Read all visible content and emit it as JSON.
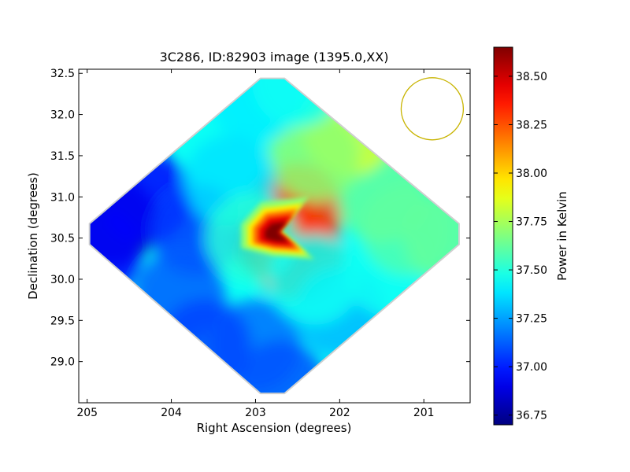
{
  "chart_data": {
    "type": "heatmap",
    "title": "3C286, ID:82903 image (1395.0,XX)",
    "xlabel": "Right Ascension (degrees)",
    "ylabel": "Declination (degrees)",
    "xlim": [
      205.1,
      200.45
    ],
    "ylim": [
      28.5,
      32.55
    ],
    "x_ticks": [
      "205",
      "204",
      "203",
      "202",
      "201"
    ],
    "y_ticks": [
      "29.0",
      "29.5",
      "30.0",
      "30.5",
      "31.0",
      "31.5",
      "32.0",
      "32.5"
    ],
    "colorbar": {
      "label": "Power in Kelvin",
      "range": [
        36.7,
        38.65
      ],
      "ticks": [
        "36.75",
        "37.00",
        "37.25",
        "37.50",
        "37.75",
        "38.00",
        "38.25",
        "38.50"
      ],
      "colormap": "jet"
    },
    "map_region": {
      "shape": "diamond",
      "center_ra": 202.8,
      "center_dec": 30.55,
      "corners": {
        "top_dec": 32.55,
        "bottom_dec": 28.5,
        "left_ra": 205.1,
        "right_ra": 200.45
      }
    },
    "peak": {
      "ra": 202.75,
      "dec": 30.55,
      "value": 38.65
    },
    "samples": [
      {
        "ra": 202.75,
        "dec": 30.55,
        "value": 38.65
      },
      {
        "ra": 202.5,
        "dec": 30.85,
        "value": 38.3
      },
      {
        "ra": 202.5,
        "dec": 30.3,
        "value": 38.3
      },
      {
        "ra": 204.7,
        "dec": 30.7,
        "value": 36.75
      },
      {
        "ra": 204.3,
        "dec": 31.0,
        "value": 36.95
      },
      {
        "ra": 203.7,
        "dec": 30.6,
        "value": 37.05
      },
      {
        "ra": 203.9,
        "dec": 29.8,
        "value": 37.12
      },
      {
        "ra": 203.0,
        "dec": 29.2,
        "value": 37.15
      },
      {
        "ra": 202.7,
        "dec": 28.7,
        "value": 37.1
      },
      {
        "ra": 202.0,
        "dec": 29.6,
        "value": 37.3
      },
      {
        "ra": 201.4,
        "dec": 30.1,
        "value": 37.45
      },
      {
        "ra": 201.2,
        "dec": 30.6,
        "value": 37.58
      },
      {
        "ra": 200.7,
        "dec": 30.5,
        "value": 37.62
      },
      {
        "ra": 201.5,
        "dec": 31.0,
        "value": 37.62
      },
      {
        "ra": 201.9,
        "dec": 31.8,
        "value": 37.85
      },
      {
        "ra": 202.3,
        "dec": 31.5,
        "value": 37.7
      },
      {
        "ra": 203.0,
        "dec": 32.2,
        "value": 37.4
      },
      {
        "ra": 202.5,
        "dec": 32.4,
        "value": 37.45
      },
      {
        "ra": 203.3,
        "dec": 31.2,
        "value": 37.38
      },
      {
        "ra": 203.05,
        "dec": 30.5,
        "value": 37.5
      },
      {
        "ra": 202.3,
        "dec": 30.0,
        "value": 37.45
      },
      {
        "ra": 204.9,
        "dec": 30.3,
        "value": 36.95
      },
      {
        "ra": 203.6,
        "dec": 29.2,
        "value": 37.08
      }
    ],
    "beam_circle": {
      "ra": 200.9,
      "dec": 32.07,
      "radius_deg": 0.37,
      "color": "#c8b400"
    },
    "grid": false,
    "legend": "none"
  }
}
